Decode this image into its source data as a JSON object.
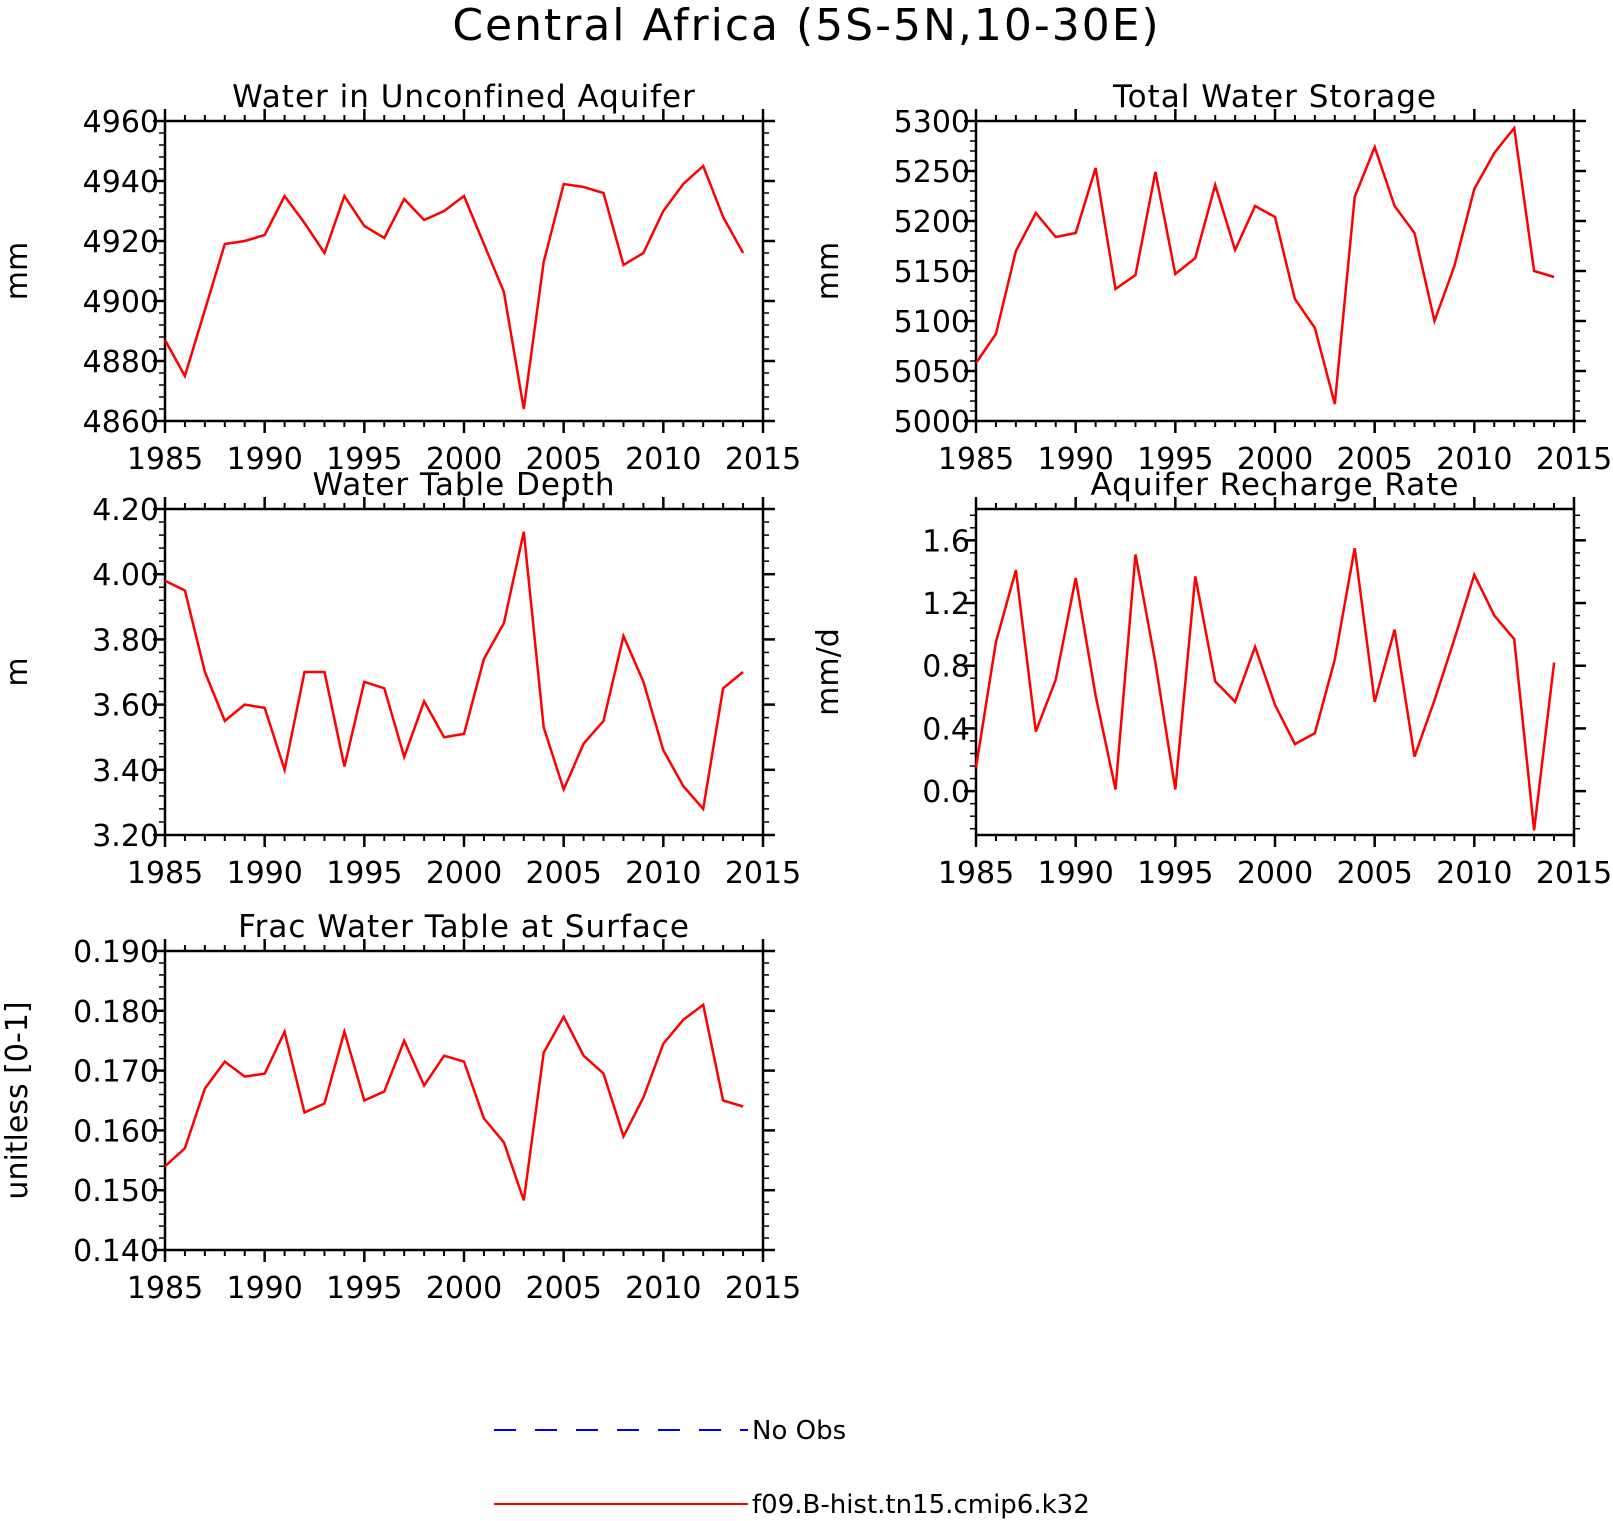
{
  "figure": {
    "title": "Central Africa (5S-5N,10-30E)"
  },
  "legend": [
    {
      "label": "No Obs",
      "color": "#0000ff",
      "style": "dashed"
    },
    {
      "label": "f09.B-hist.tn15.cmip6.k32",
      "color": "#ff0000",
      "style": "solid"
    }
  ],
  "chart_data": [
    {
      "type": "line",
      "title": "Water in Unconfined Aquifer",
      "xlabel": "",
      "ylabel": "mm",
      "xlim": [
        1985,
        2015
      ],
      "ylim": [
        4860,
        4960
      ],
      "xticks": [
        1985,
        1990,
        1995,
        2000,
        2005,
        2010,
        2015
      ],
      "yticks": [
        "4860",
        "4880",
        "4900",
        "4920",
        "4940",
        "4960"
      ],
      "x": [
        1985,
        1986,
        1987,
        1988,
        1989,
        1990,
        1991,
        1992,
        1993,
        1994,
        1995,
        1996,
        1997,
        1998,
        1999,
        2000,
        2001,
        2002,
        2003,
        2004,
        2005,
        2006,
        2007,
        2008,
        2009,
        2010,
        2011,
        2012,
        2013,
        2014
      ],
      "series": [
        {
          "color": "#ff0000",
          "values": [
            4887,
            4875,
            4897,
            4919,
            4920,
            4922,
            4935,
            4926,
            4916,
            4935,
            4925,
            4921,
            4934,
            4927,
            4930,
            4935,
            4919,
            4903,
            4864,
            4913,
            4939,
            4938,
            4936,
            4912,
            4916,
            4930,
            4939,
            4945,
            4928,
            4916
          ]
        }
      ]
    },
    {
      "type": "line",
      "title": "Total Water Storage",
      "xlabel": "",
      "ylabel": "mm",
      "xlim": [
        1985,
        2015
      ],
      "ylim": [
        5000,
        5300
      ],
      "xticks": [
        1985,
        1990,
        1995,
        2000,
        2005,
        2010,
        2015
      ],
      "yticks": [
        "5000",
        "5050",
        "5100",
        "5150",
        "5200",
        "5250",
        "5300"
      ],
      "x": [
        1985,
        1986,
        1987,
        1988,
        1989,
        1990,
        1991,
        1992,
        1993,
        1994,
        1995,
        1996,
        1997,
        1998,
        1999,
        2000,
        2001,
        2002,
        2003,
        2004,
        2005,
        2006,
        2007,
        2008,
        2009,
        2010,
        2011,
        2012,
        2013,
        2014
      ],
      "series": [
        {
          "color": "#ff0000",
          "values": [
            5058,
            5087,
            5170,
            5208,
            5184,
            5188,
            5253,
            5132,
            5146,
            5249,
            5147,
            5163,
            5236,
            5171,
            5215,
            5204,
            5122,
            5093,
            5017,
            5224,
            5274,
            5215,
            5188,
            5100,
            5155,
            5232,
            5268,
            5293,
            5150,
            5144
          ]
        }
      ]
    },
    {
      "type": "line",
      "title": "Water Table Depth",
      "xlabel": "",
      "ylabel": "m",
      "xlim": [
        1985,
        2015
      ],
      "ylim": [
        3.2,
        4.2
      ],
      "xticks": [
        1985,
        1990,
        1995,
        2000,
        2005,
        2010,
        2015
      ],
      "yticks": [
        "3.20",
        "3.40",
        "3.60",
        "3.80",
        "4.00",
        "4.20"
      ],
      "x": [
        1985,
        1986,
        1987,
        1988,
        1989,
        1990,
        1991,
        1992,
        1993,
        1994,
        1995,
        1996,
        1997,
        1998,
        1999,
        2000,
        2001,
        2002,
        2003,
        2004,
        2005,
        2006,
        2007,
        2008,
        2009,
        2010,
        2011,
        2012,
        2013,
        2014
      ],
      "series": [
        {
          "color": "#ff0000",
          "values": [
            3.98,
            3.95,
            3.7,
            3.55,
            3.6,
            3.59,
            3.4,
            3.7,
            3.7,
            3.41,
            3.67,
            3.65,
            3.44,
            3.61,
            3.5,
            3.51,
            3.74,
            3.85,
            4.13,
            3.53,
            3.34,
            3.48,
            3.55,
            3.81,
            3.67,
            3.46,
            3.35,
            3.28,
            3.65,
            3.7
          ]
        }
      ]
    },
    {
      "type": "line",
      "title": "Aquifer Recharge Rate",
      "xlabel": "",
      "ylabel": "mm/d",
      "xlim": [
        1985,
        2015
      ],
      "ylim": [
        -0.28,
        1.8
      ],
      "xticks": [
        1985,
        1990,
        1995,
        2000,
        2005,
        2010,
        2015
      ],
      "yticks": [
        "0.0",
        "0.4",
        "0.8",
        "1.2",
        "1.6"
      ],
      "x": [
        1985,
        1986,
        1987,
        1988,
        1989,
        1990,
        1991,
        1992,
        1993,
        1994,
        1995,
        1996,
        1997,
        1998,
        1999,
        2000,
        2001,
        2002,
        2003,
        2004,
        2005,
        2006,
        2007,
        2008,
        2009,
        2010,
        2011,
        2012,
        2013,
        2014
      ],
      "series": [
        {
          "color": "#ff0000",
          "values": [
            0.15,
            0.95,
            1.41,
            0.38,
            0.71,
            1.36,
            0.61,
            0.01,
            1.51,
            0.82,
            0.01,
            1.37,
            0.7,
            0.57,
            0.92,
            0.55,
            0.3,
            0.37,
            0.84,
            1.55,
            0.57,
            1.03,
            0.22,
            0.58,
            0.97,
            1.38,
            1.12,
            0.97,
            -0.25,
            0.82
          ]
        }
      ]
    },
    {
      "type": "line",
      "title": "Frac Water Table at Surface",
      "xlabel": "",
      "ylabel": "unitless [0-1]",
      "xlim": [
        1985,
        2015
      ],
      "ylim": [
        0.14,
        0.19
      ],
      "xticks": [
        1985,
        1990,
        1995,
        2000,
        2005,
        2010,
        2015
      ],
      "yticks": [
        "0.140",
        "0.150",
        "0.160",
        "0.170",
        "0.180",
        "0.190"
      ],
      "x": [
        1985,
        1986,
        1987,
        1988,
        1989,
        1990,
        1991,
        1992,
        1993,
        1994,
        1995,
        1996,
        1997,
        1998,
        1999,
        2000,
        2001,
        2002,
        2003,
        2004,
        2005,
        2006,
        2007,
        2008,
        2009,
        2010,
        2011,
        2012,
        2013,
        2014
      ],
      "series": [
        {
          "color": "#ff0000",
          "values": [
            0.154,
            0.157,
            0.167,
            0.1715,
            0.169,
            0.1695,
            0.1765,
            0.163,
            0.1645,
            0.1765,
            0.165,
            0.1665,
            0.175,
            0.1675,
            0.1725,
            0.1715,
            0.162,
            0.158,
            0.1483,
            0.173,
            0.179,
            0.1725,
            0.1695,
            0.159,
            0.1655,
            0.1745,
            0.1785,
            0.181,
            0.165,
            0.164
          ]
        }
      ]
    }
  ]
}
